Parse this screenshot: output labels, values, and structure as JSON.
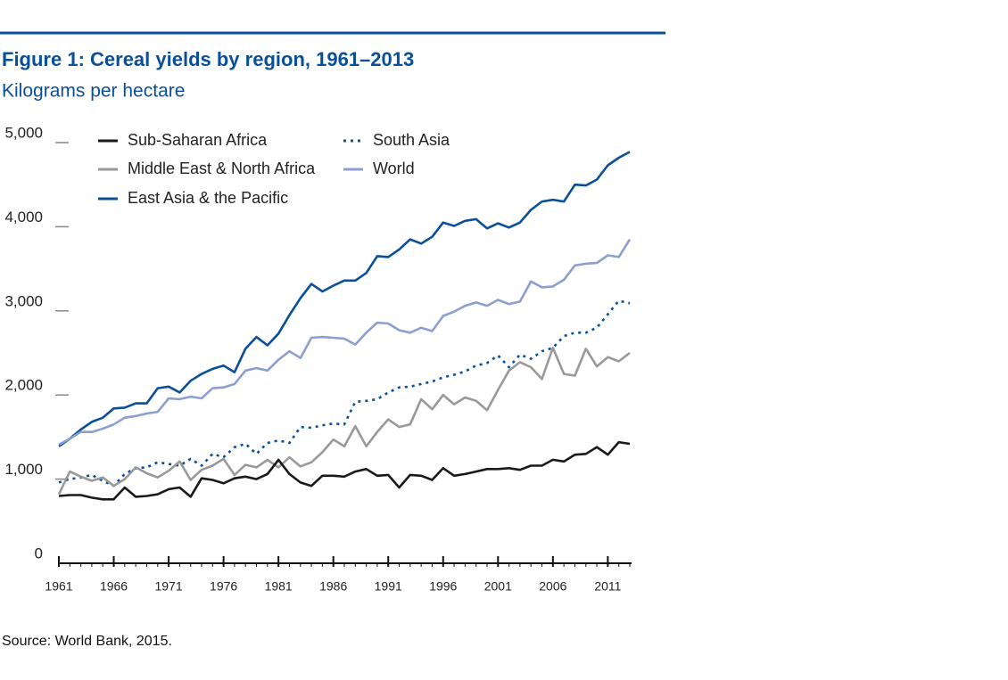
{
  "chart_data": {
    "type": "line",
    "title": "Figure 1: Cereal yields by region, 1961–2013",
    "subtitle": "Kilograms per hectare",
    "source": "Source: World Bank, 2015.",
    "x": [
      1961,
      1962,
      1963,
      1964,
      1965,
      1966,
      1967,
      1968,
      1969,
      1970,
      1971,
      1972,
      1973,
      1974,
      1975,
      1976,
      1977,
      1978,
      1979,
      1980,
      1981,
      1982,
      1983,
      1984,
      1985,
      1986,
      1987,
      1988,
      1989,
      1990,
      1991,
      1992,
      1993,
      1994,
      1995,
      1996,
      1997,
      1998,
      1999,
      2000,
      2001,
      2002,
      2003,
      2004,
      2005,
      2006,
      2007,
      2008,
      2009,
      2010,
      2011,
      2012,
      2013
    ],
    "xlim": [
      1961,
      2013
    ],
    "xticks": [
      1961,
      1966,
      1971,
      1976,
      1981,
      1986,
      1991,
      1996,
      2001,
      2006,
      2011
    ],
    "ylim": [
      0,
      5000
    ],
    "yticks": [
      0,
      {
        "value": 1000,
        "label": "1,000"
      },
      {
        "value": 2000,
        "label": "2,000"
      },
      {
        "value": 3000,
        "label": "3,000"
      },
      {
        "value": 4000,
        "label": "4,000"
      },
      {
        "value": 5000,
        "label": "5,000"
      }
    ],
    "grid": false,
    "series": [
      {
        "name": "Sub-Saharan Africa",
        "color": "#1a1a1a",
        "style": "solid",
        "values": [
          800,
          810,
          810,
          780,
          760,
          760,
          900,
          790,
          800,
          820,
          880,
          900,
          790,
          1010,
          990,
          950,
          1010,
          1030,
          1000,
          1060,
          1230,
          1060,
          960,
          920,
          1040,
          1040,
          1030,
          1090,
          1120,
          1040,
          1050,
          900,
          1050,
          1040,
          990,
          1130,
          1040,
          1060,
          1090,
          1120,
          1120,
          1130,
          1110,
          1160,
          1160,
          1230,
          1210,
          1290,
          1300,
          1380,
          1290,
          1440,
          1420
        ]
      },
      {
        "name": "Middle East & North Africa",
        "color": "#999999",
        "style": "solid",
        "values": [
          820,
          1090,
          1030,
          980,
          1020,
          920,
          1000,
          1140,
          1070,
          1020,
          1100,
          1210,
          990,
          1110,
          1160,
          1240,
          1050,
          1170,
          1140,
          1230,
          1140,
          1260,
          1150,
          1200,
          1320,
          1470,
          1390,
          1630,
          1390,
          1560,
          1710,
          1620,
          1650,
          1950,
          1830,
          2000,
          1890,
          1970,
          1930,
          1820,
          2060,
          2290,
          2390,
          2330,
          2190,
          2560,
          2250,
          2230,
          2550,
          2340,
          2450,
          2400,
          2500
        ]
      },
      {
        "name": "East Asia & the Pacific",
        "color": "#0a4f9a",
        "style": "solid",
        "values": [
          1390,
          1480,
          1590,
          1680,
          1730,
          1840,
          1850,
          1900,
          1900,
          2080,
          2100,
          2030,
          2170,
          2250,
          2310,
          2350,
          2270,
          2550,
          2690,
          2590,
          2730,
          2950,
          3150,
          3320,
          3230,
          3300,
          3360,
          3360,
          3450,
          3650,
          3640,
          3730,
          3850,
          3800,
          3880,
          4050,
          4010,
          4070,
          4090,
          3980,
          4040,
          3990,
          4050,
          4200,
          4300,
          4320,
          4300,
          4500,
          4490,
          4560,
          4730,
          4820,
          4890
        ]
      },
      {
        "name": "South Asia",
        "color": "#0a4f9a",
        "style": "dotted",
        "values": [
          960,
          1000,
          1020,
          1050,
          980,
          920,
          1060,
          1130,
          1140,
          1200,
          1180,
          1160,
          1240,
          1160,
          1300,
          1260,
          1380,
          1420,
          1300,
          1430,
          1460,
          1430,
          1620,
          1610,
          1640,
          1660,
          1650,
          1920,
          1930,
          1950,
          2030,
          2090,
          2100,
          2130,
          2160,
          2210,
          2240,
          2280,
          2350,
          2380,
          2470,
          2330,
          2480,
          2430,
          2520,
          2560,
          2700,
          2740,
          2740,
          2800,
          2960,
          3120,
          3090
        ]
      },
      {
        "name": "World",
        "color": "#8c9fcf",
        "style": "solid",
        "values": [
          1410,
          1480,
          1560,
          1560,
          1600,
          1650,
          1730,
          1750,
          1780,
          1800,
          1960,
          1950,
          1980,
          1960,
          2080,
          2090,
          2130,
          2290,
          2320,
          2290,
          2420,
          2520,
          2440,
          2680,
          2690,
          2680,
          2670,
          2600,
          2740,
          2860,
          2850,
          2770,
          2740,
          2800,
          2760,
          2940,
          2990,
          3060,
          3100,
          3060,
          3130,
          3080,
          3110,
          3350,
          3280,
          3290,
          3370,
          3540,
          3560,
          3570,
          3660,
          3640,
          3850
        ]
      }
    ]
  }
}
